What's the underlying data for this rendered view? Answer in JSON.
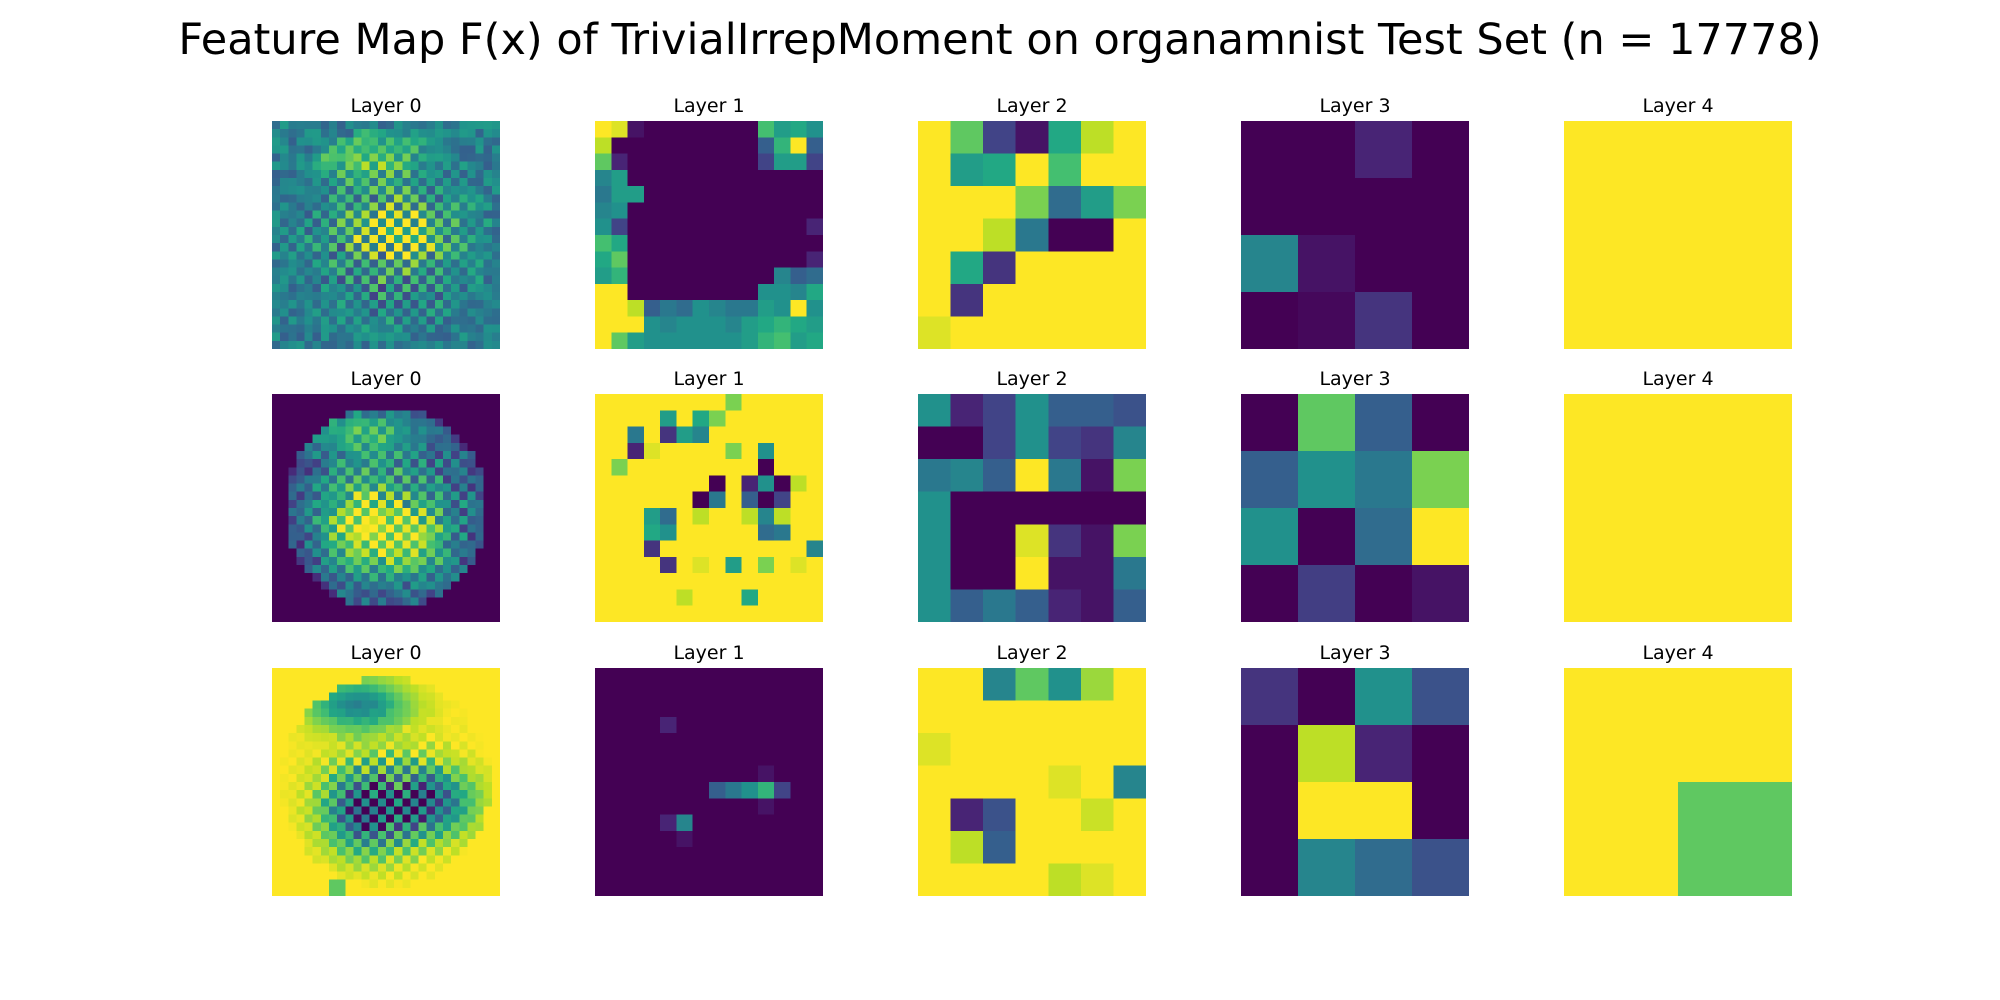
{
  "title": "Feature Map F(x) of TrivialIrrepMoment on organamnist Test Set (n = 17778)",
  "chart_data": {
    "type": "heatmap",
    "title": "Feature Map F(x) of TrivialIrrepMoment on organamnist Test Set (n = 17778)",
    "colormap": "viridis",
    "grid": false,
    "rows": 3,
    "columns": 5,
    "panel_titles": [
      [
        "Layer 0",
        "Layer 1",
        "Layer 2",
        "Layer 3",
        "Layer 4"
      ],
      [
        "Layer 0",
        "Layer 1",
        "Layer 2",
        "Layer 3",
        "Layer 4"
      ],
      [
        "Layer 0",
        "Layer 1",
        "Layer 2",
        "Layer 3",
        "Layer 4"
      ]
    ],
    "resolutions": [
      28,
      14,
      7,
      4,
      2
    ],
    "small_maps": [
      [
        null,
        [
          [
            1.0,
            0.95,
            0.05,
            0.0,
            0.0,
            0.0,
            0.0,
            0.0,
            0.0,
            0.0,
            0.7,
            0.55,
            0.6,
            0.5
          ],
          [
            0.9,
            0.0,
            0.0,
            0.0,
            0.0,
            0.0,
            0.0,
            0.0,
            0.0,
            0.0,
            0.3,
            0.65,
            1.0,
            0.3
          ],
          [
            0.75,
            0.1,
            0.0,
            0.0,
            0.0,
            0.0,
            0.0,
            0.0,
            0.0,
            0.0,
            0.2,
            0.55,
            0.55,
            0.2
          ],
          [
            0.45,
            0.55,
            0.0,
            0.0,
            0.0,
            0.0,
            0.0,
            0.0,
            0.0,
            0.0,
            0.0,
            0.0,
            0.0,
            0.0
          ],
          [
            0.4,
            0.55,
            0.55,
            0.0,
            0.0,
            0.0,
            0.0,
            0.0,
            0.0,
            0.0,
            0.0,
            0.0,
            0.0,
            0.0
          ],
          [
            0.45,
            0.5,
            0.0,
            0.0,
            0.0,
            0.0,
            0.0,
            0.0,
            0.0,
            0.0,
            0.0,
            0.0,
            0.0,
            0.0
          ],
          [
            0.5,
            0.2,
            0.0,
            0.0,
            0.0,
            0.0,
            0.0,
            0.0,
            0.0,
            0.0,
            0.0,
            0.0,
            0.0,
            0.1
          ],
          [
            0.7,
            0.6,
            0.0,
            0.0,
            0.0,
            0.0,
            0.0,
            0.0,
            0.0,
            0.0,
            0.0,
            0.0,
            0.0,
            0.0
          ],
          [
            0.6,
            0.75,
            0.0,
            0.0,
            0.0,
            0.0,
            0.0,
            0.0,
            0.0,
            0.0,
            0.0,
            0.0,
            0.0,
            0.1
          ],
          [
            0.55,
            0.65,
            0.0,
            0.0,
            0.0,
            0.0,
            0.0,
            0.0,
            0.0,
            0.0,
            0.0,
            0.45,
            0.3,
            0.35
          ],
          [
            1.0,
            1.0,
            0.0,
            0.0,
            0.0,
            0.0,
            0.0,
            0.0,
            0.0,
            0.0,
            0.5,
            0.5,
            0.45,
            0.6
          ],
          [
            1.0,
            1.0,
            0.9,
            0.3,
            0.4,
            0.35,
            0.5,
            0.45,
            0.4,
            0.4,
            0.55,
            0.5,
            1.0,
            0.5
          ],
          [
            1.0,
            1.0,
            1.0,
            0.5,
            0.45,
            0.5,
            0.5,
            0.5,
            0.45,
            0.55,
            0.6,
            0.65,
            0.6,
            0.55
          ],
          [
            1.0,
            0.75,
            0.55,
            0.5,
            0.5,
            0.5,
            0.5,
            0.5,
            0.5,
            0.55,
            0.65,
            0.7,
            0.55,
            0.6
          ]
        ],
        [
          [
            1.0,
            0.75,
            0.2,
            0.05,
            0.6,
            0.9,
            1.0
          ],
          [
            1.0,
            0.55,
            0.6,
            1.0,
            0.7,
            1.0,
            1.0
          ],
          [
            1.0,
            1.0,
            1.0,
            0.8,
            0.35,
            0.55,
            0.8
          ],
          [
            1.0,
            1.0,
            0.9,
            0.4,
            0.0,
            0.0,
            1.0
          ],
          [
            1.0,
            0.6,
            0.15,
            1.0,
            1.0,
            1.0,
            1.0
          ],
          [
            1.0,
            0.15,
            1.0,
            1.0,
            1.0,
            1.0,
            1.0
          ],
          [
            0.95,
            1.0,
            1.0,
            1.0,
            1.0,
            1.0,
            1.0
          ]
        ],
        [
          [
            0.0,
            0.0,
            0.1,
            0.0
          ],
          [
            0.0,
            0.0,
            0.0,
            0.0
          ],
          [
            0.45,
            0.05,
            0.0,
            0.0
          ],
          [
            0.0,
            0.02,
            0.15,
            0.0
          ]
        ],
        [
          [
            1.0,
            1.0
          ],
          [
            1.0,
            1.0
          ]
        ]
      ],
      [
        null,
        [
          [
            1.0,
            1.0,
            1.0,
            1.0,
            1.0,
            1.0,
            1.0,
            1.0,
            0.8,
            1.0,
            1.0,
            1.0,
            1.0,
            1.0
          ],
          [
            1.0,
            1.0,
            1.0,
            1.0,
            0.55,
            1.0,
            0.6,
            0.8,
            1.0,
            1.0,
            1.0,
            1.0,
            1.0,
            1.0
          ],
          [
            1.0,
            1.0,
            0.4,
            1.0,
            0.15,
            0.55,
            0.45,
            1.0,
            1.0,
            1.0,
            1.0,
            1.0,
            1.0,
            1.0
          ],
          [
            1.0,
            1.0,
            0.1,
            0.95,
            1.0,
            1.0,
            1.0,
            1.0,
            0.8,
            1.0,
            0.5,
            1.0,
            1.0,
            1.0
          ],
          [
            1.0,
            0.8,
            1.0,
            1.0,
            1.0,
            1.0,
            1.0,
            1.0,
            1.0,
            1.0,
            0.0,
            1.0,
            1.0,
            1.0
          ],
          [
            1.0,
            1.0,
            1.0,
            1.0,
            1.0,
            1.0,
            1.0,
            0.0,
            1.0,
            0.1,
            0.5,
            0.0,
            0.9,
            1.0
          ],
          [
            1.0,
            1.0,
            1.0,
            1.0,
            1.0,
            1.0,
            0.0,
            0.4,
            1.0,
            0.3,
            0.0,
            0.2,
            1.0,
            1.0
          ],
          [
            1.0,
            1.0,
            1.0,
            0.55,
            0.35,
            1.0,
            0.9,
            1.0,
            1.0,
            0.9,
            0.45,
            0.9,
            1.0,
            1.0
          ],
          [
            1.0,
            1.0,
            1.0,
            0.6,
            0.5,
            1.0,
            1.0,
            1.0,
            1.0,
            1.0,
            0.35,
            0.4,
            1.0,
            1.0
          ],
          [
            1.0,
            1.0,
            1.0,
            0.15,
            1.0,
            1.0,
            1.0,
            1.0,
            1.0,
            1.0,
            1.0,
            1.0,
            1.0,
            0.45
          ],
          [
            1.0,
            1.0,
            1.0,
            1.0,
            0.15,
            1.0,
            0.95,
            1.0,
            0.55,
            1.0,
            0.8,
            1.0,
            0.95,
            1.0
          ],
          [
            1.0,
            1.0,
            1.0,
            1.0,
            1.0,
            1.0,
            1.0,
            1.0,
            1.0,
            1.0,
            1.0,
            1.0,
            1.0,
            1.0
          ],
          [
            1.0,
            1.0,
            1.0,
            1.0,
            1.0,
            0.9,
            1.0,
            1.0,
            1.0,
            0.6,
            1.0,
            1.0,
            1.0,
            1.0
          ],
          [
            1.0,
            1.0,
            1.0,
            1.0,
            1.0,
            1.0,
            1.0,
            1.0,
            1.0,
            1.0,
            1.0,
            1.0,
            1.0,
            1.0
          ]
        ],
        [
          [
            0.5,
            0.1,
            0.2,
            0.5,
            0.3,
            0.3,
            0.25
          ],
          [
            0.0,
            0.0,
            0.2,
            0.5,
            0.2,
            0.15,
            0.45
          ],
          [
            0.4,
            0.45,
            0.3,
            1.0,
            0.4,
            0.05,
            0.8
          ],
          [
            0.5,
            0.0,
            0.0,
            0.0,
            0.0,
            0.0,
            0.0
          ],
          [
            0.5,
            0.0,
            0.0,
            0.95,
            0.15,
            0.05,
            0.8
          ],
          [
            0.5,
            0.0,
            0.0,
            1.0,
            0.05,
            0.05,
            0.4
          ],
          [
            0.5,
            0.3,
            0.4,
            0.3,
            0.1,
            0.05,
            0.3
          ]
        ],
        [
          [
            0.0,
            0.75,
            0.3,
            0.0
          ],
          [
            0.3,
            0.5,
            0.4,
            0.8
          ],
          [
            0.5,
            0.0,
            0.35,
            1.0
          ],
          [
            0.0,
            0.18,
            0.0,
            0.05
          ]
        ],
        [
          [
            1.0,
            1.0
          ],
          [
            1.0,
            1.0
          ]
        ]
      ],
      [
        null,
        [
          [
            0.0,
            0.0,
            0.0,
            0.0,
            0.0,
            0.0,
            0.0,
            0.0,
            0.0,
            0.0,
            0.0,
            0.0,
            0.0,
            0.0
          ],
          [
            0.0,
            0.0,
            0.0,
            0.0,
            0.0,
            0.0,
            0.0,
            0.0,
            0.0,
            0.0,
            0.0,
            0.0,
            0.0,
            0.0
          ],
          [
            0.0,
            0.0,
            0.0,
            0.0,
            0.0,
            0.0,
            0.0,
            0.0,
            0.0,
            0.0,
            0.0,
            0.0,
            0.0,
            0.0
          ],
          [
            0.0,
            0.0,
            0.0,
            0.0,
            0.1,
            0.0,
            0.0,
            0.0,
            0.0,
            0.0,
            0.0,
            0.0,
            0.0,
            0.0
          ],
          [
            0.0,
            0.0,
            0.0,
            0.0,
            0.0,
            0.0,
            0.0,
            0.0,
            0.0,
            0.0,
            0.0,
            0.0,
            0.0,
            0.0
          ],
          [
            0.0,
            0.0,
            0.0,
            0.0,
            0.0,
            0.0,
            0.0,
            0.0,
            0.0,
            0.0,
            0.0,
            0.0,
            0.0,
            0.0
          ],
          [
            0.0,
            0.0,
            0.0,
            0.0,
            0.0,
            0.0,
            0.0,
            0.0,
            0.0,
            0.0,
            0.05,
            0.0,
            0.0,
            0.0
          ],
          [
            0.0,
            0.0,
            0.0,
            0.0,
            0.0,
            0.0,
            0.0,
            0.3,
            0.4,
            0.5,
            0.65,
            0.2,
            0.0,
            0.0
          ],
          [
            0.0,
            0.0,
            0.0,
            0.0,
            0.0,
            0.0,
            0.0,
            0.0,
            0.0,
            0.0,
            0.05,
            0.0,
            0.0,
            0.0
          ],
          [
            0.0,
            0.0,
            0.0,
            0.0,
            0.1,
            0.45,
            0.0,
            0.0,
            0.0,
            0.0,
            0.0,
            0.0,
            0.0,
            0.0
          ],
          [
            0.0,
            0.0,
            0.0,
            0.0,
            0.0,
            0.05,
            0.0,
            0.0,
            0.0,
            0.0,
            0.0,
            0.0,
            0.0,
            0.0
          ],
          [
            0.0,
            0.0,
            0.0,
            0.0,
            0.0,
            0.0,
            0.0,
            0.0,
            0.0,
            0.0,
            0.0,
            0.0,
            0.0,
            0.0
          ],
          [
            0.0,
            0.0,
            0.0,
            0.0,
            0.0,
            0.0,
            0.0,
            0.0,
            0.0,
            0.0,
            0.0,
            0.0,
            0.0,
            0.0
          ],
          [
            0.0,
            0.0,
            0.0,
            0.0,
            0.0,
            0.0,
            0.0,
            0.0,
            0.0,
            0.0,
            0.0,
            0.0,
            0.0,
            0.0
          ]
        ],
        [
          [
            1.0,
            1.0,
            0.45,
            0.75,
            0.5,
            0.85,
            1.0
          ],
          [
            1.0,
            1.0,
            1.0,
            1.0,
            1.0,
            1.0,
            1.0
          ],
          [
            0.95,
            1.0,
            1.0,
            1.0,
            1.0,
            1.0,
            1.0
          ],
          [
            1.0,
            1.0,
            1.0,
            1.0,
            0.95,
            1.0,
            0.45
          ],
          [
            1.0,
            0.1,
            0.25,
            1.0,
            1.0,
            0.92,
            1.0
          ],
          [
            1.0,
            0.9,
            0.3,
            1.0,
            1.0,
            1.0,
            1.0
          ],
          [
            1.0,
            1.0,
            1.0,
            1.0,
            0.9,
            0.95,
            1.0
          ]
        ],
        [
          [
            0.15,
            0.0,
            0.5,
            0.25
          ],
          [
            0.0,
            0.9,
            0.1,
            0.0
          ],
          [
            0.0,
            1.0,
            1.0,
            0.0
          ],
          [
            0.0,
            0.45,
            0.35,
            0.25
          ]
        ],
        [
          [
            1.0,
            1.0
          ],
          [
            1.0,
            0.75
          ]
        ]
      ]
    ]
  }
}
